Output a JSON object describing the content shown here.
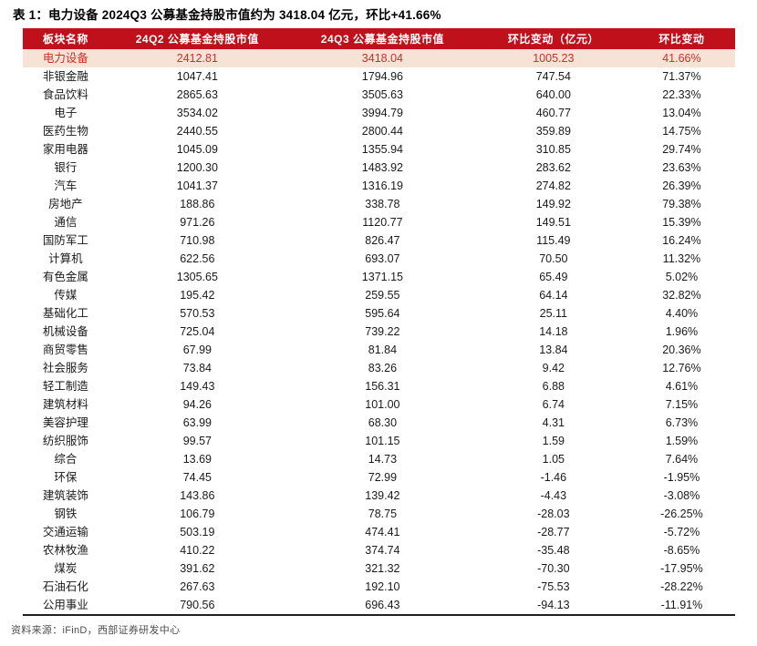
{
  "title": "表 1：电力设备 2024Q3 公募基金持股市值约为 3418.04 亿元，环比+41.66%",
  "source": "资料来源：iFinD，西部证券研发中心",
  "colors": {
    "header_bg": "#c0101c",
    "header_text": "#ffffff",
    "highlight_bg": "#f7e2d6",
    "highlight_text": "#c9302b"
  },
  "chart_data": {
    "type": "table",
    "title": "表 1：电力设备 2024Q3 公募基金持股市值约为 3418.04 亿元，环比+41.66%",
    "columns": [
      "板块名称",
      "24Q2 公募基金持股市值",
      "24Q3 公募基金持股市值",
      "环比变动（亿元）",
      "环比变动"
    ],
    "highlight_row_index": 0,
    "rows": [
      [
        "电力设备",
        "2412.81",
        "3418.04",
        "1005.23",
        "41.66%"
      ],
      [
        "非银金融",
        "1047.41",
        "1794.96",
        "747.54",
        "71.37%"
      ],
      [
        "食品饮料",
        "2865.63",
        "3505.63",
        "640.00",
        "22.33%"
      ],
      [
        "电子",
        "3534.02",
        "3994.79",
        "460.77",
        "13.04%"
      ],
      [
        "医药生物",
        "2440.55",
        "2800.44",
        "359.89",
        "14.75%"
      ],
      [
        "家用电器",
        "1045.09",
        "1355.94",
        "310.85",
        "29.74%"
      ],
      [
        "银行",
        "1200.30",
        "1483.92",
        "283.62",
        "23.63%"
      ],
      [
        "汽车",
        "1041.37",
        "1316.19",
        "274.82",
        "26.39%"
      ],
      [
        "房地产",
        "188.86",
        "338.78",
        "149.92",
        "79.38%"
      ],
      [
        "通信",
        "971.26",
        "1120.77",
        "149.51",
        "15.39%"
      ],
      [
        "国防军工",
        "710.98",
        "826.47",
        "115.49",
        "16.24%"
      ],
      [
        "计算机",
        "622.56",
        "693.07",
        "70.50",
        "11.32%"
      ],
      [
        "有色金属",
        "1305.65",
        "1371.15",
        "65.49",
        "5.02%"
      ],
      [
        "传媒",
        "195.42",
        "259.55",
        "64.14",
        "32.82%"
      ],
      [
        "基础化工",
        "570.53",
        "595.64",
        "25.11",
        "4.40%"
      ],
      [
        "机械设备",
        "725.04",
        "739.22",
        "14.18",
        "1.96%"
      ],
      [
        "商贸零售",
        "67.99",
        "81.84",
        "13.84",
        "20.36%"
      ],
      [
        "社会服务",
        "73.84",
        "83.26",
        "9.42",
        "12.76%"
      ],
      [
        "轻工制造",
        "149.43",
        "156.31",
        "6.88",
        "4.61%"
      ],
      [
        "建筑材料",
        "94.26",
        "101.00",
        "6.74",
        "7.15%"
      ],
      [
        "美容护理",
        "63.99",
        "68.30",
        "4.31",
        "6.73%"
      ],
      [
        "纺织服饰",
        "99.57",
        "101.15",
        "1.59",
        "1.59%"
      ],
      [
        "综合",
        "13.69",
        "14.73",
        "1.05",
        "7.64%"
      ],
      [
        "环保",
        "74.45",
        "72.99",
        "-1.46",
        "-1.95%"
      ],
      [
        "建筑装饰",
        "143.86",
        "139.42",
        "-4.43",
        "-3.08%"
      ],
      [
        "钢铁",
        "106.79",
        "78.75",
        "-28.03",
        "-26.25%"
      ],
      [
        "交通运输",
        "503.19",
        "474.41",
        "-28.77",
        "-5.72%"
      ],
      [
        "农林牧渔",
        "410.22",
        "374.74",
        "-35.48",
        "-8.65%"
      ],
      [
        "煤炭",
        "391.62",
        "321.32",
        "-70.30",
        "-17.95%"
      ],
      [
        "石油石化",
        "267.63",
        "192.10",
        "-75.53",
        "-28.22%"
      ],
      [
        "公用事业",
        "790.56",
        "696.43",
        "-94.13",
        "-11.91%"
      ]
    ]
  }
}
